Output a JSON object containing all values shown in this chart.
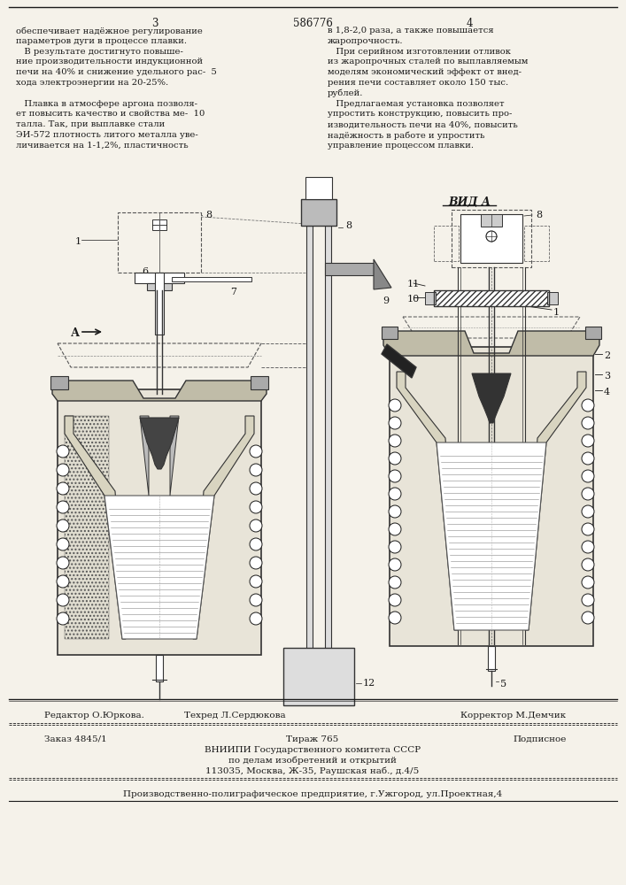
{
  "bg_color": "#f5f2ea",
  "text_color": "#1a1a1a",
  "page_num_left": "3",
  "page_num_center": "586776",
  "page_num_right": "4",
  "col1_lines": [
    "обеспечивает надёжное регулирование",
    "параметров дуги в процессе плавки.",
    "   В результате достигнуто повыше-",
    "ние производительности индукционной",
    "печи на 40% и снижение удельного рас-  5",
    "хода электроэнергии на 20-25%.",
    "",
    "   Плавка в атмосфере аргона позволя-",
    "ет повысить качество и свойства ме-  10",
    "талла. Так, при выплавке стали",
    "ЭИ-572 плотность литого металла уве-",
    "личивается на 1-1,2%, пластичность"
  ],
  "col2_lines": [
    "в 1,8-2,0 раза, а также повышается",
    "жаропрочность.",
    "   При серийном изготовлении отливок",
    "из жаропрочных сталей по выплавляемым",
    "моделям экономический эффект от внед-",
    "рения печи составляет около 150 тыс.",
    "рублей.",
    "   Предлагаемая установка позволяет",
    "упростить конструкцию, повысить про-",
    "изводительность печи на 40%, повысить",
    "надёжность в работе и упростить",
    "управление процессом плавки."
  ],
  "vida_label": "ВИД А",
  "editor_line1": "Редактор О.Юркова.",
  "editor_line2": "Техред Л.Сердюкова",
  "editor_line3": "Корректор М.Демчик",
  "order_col1": "Заказ 4845/1",
  "order_col2": "Тираж 765",
  "order_col3": "Подписное",
  "vnipi_line1": "ВНИИПИ Государственного комитета СССР",
  "vnipi_line2": "по делам изобретений и открытий",
  "vnipi_line3": "113035, Москва, Ж-35, Раушская наб., д.4/5",
  "prod_line": "Производственно-полиграфическое предприятие, г.Ужгород, ул.Проектная,4"
}
